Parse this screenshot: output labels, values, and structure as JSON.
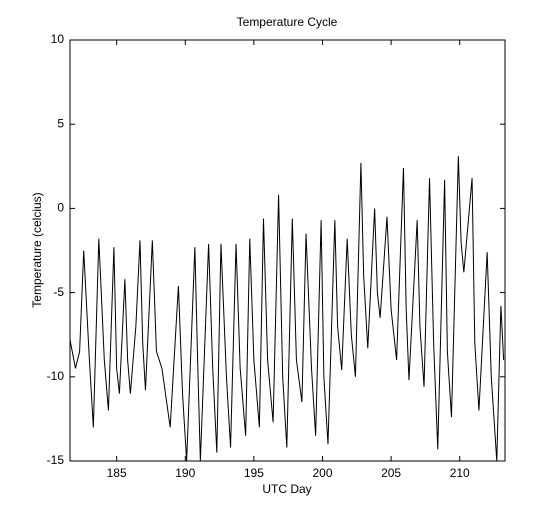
{
  "chart_data": {
    "type": "line",
    "title": "Temperature Cycle",
    "x_label": "UTC Day",
    "y_label": "Temperature (celcius)",
    "x": [
      181.6,
      182.0,
      182.3,
      182.6,
      183.0,
      183.3,
      183.7,
      184.1,
      184.4,
      184.8,
      185.0,
      185.2,
      185.6,
      185.8,
      186.0,
      186.4,
      186.7,
      186.9,
      187.1,
      187.6,
      187.9,
      188.3,
      188.9,
      189.5,
      189.8,
      190.1,
      190.7,
      190.9,
      191.1,
      191.7,
      192.0,
      192.3,
      192.6,
      193.0,
      193.3,
      193.7,
      194.0,
      194.4,
      194.7,
      195.0,
      195.4,
      195.7,
      196.0,
      196.4,
      196.8,
      197.1,
      197.4,
      197.8,
      198.1,
      198.5,
      198.8,
      199.2,
      199.5,
      199.9,
      200.1,
      200.4,
      200.9,
      201.1,
      201.4,
      201.8,
      202.1,
      202.4,
      202.8,
      203.0,
      203.3,
      203.8,
      204.0,
      204.2,
      204.7,
      205.0,
      205.4,
      205.9,
      206.1,
      206.3,
      206.9,
      207.1,
      207.4,
      207.8,
      208.1,
      208.4,
      208.9,
      209.1,
      209.4,
      209.9,
      210.1,
      210.3,
      210.9,
      211.1,
      211.4,
      212.0,
      212.3,
      212.7,
      213.0,
      213.2
    ],
    "series": [
      {
        "name": "Temperature",
        "color": "#000000",
        "values": [
          -7.8,
          -9.5,
          -8.5,
          -2.5,
          -8.8,
          -13.0,
          -1.8,
          -9.0,
          -12.0,
          -2.3,
          -9.5,
          -11.0,
          -4.2,
          -9.0,
          -11.0,
          -7.0,
          -1.9,
          -8.0,
          -10.8,
          -1.9,
          -8.5,
          -9.5,
          -13.0,
          -4.6,
          -11.0,
          -15.0,
          -2.3,
          -9.0,
          -15.0,
          -2.1,
          -9.5,
          -14.5,
          -2.1,
          -10.0,
          -14.2,
          -2.1,
          -9.5,
          -13.5,
          -1.8,
          -9.0,
          -13.0,
          -0.6,
          -9.0,
          -12.7,
          0.8,
          -10.0,
          -14.2,
          -0.6,
          -9.0,
          -11.5,
          -1.5,
          -9.5,
          -13.5,
          -0.7,
          -10.0,
          -14.0,
          -0.7,
          -7.0,
          -9.6,
          -1.8,
          -7.5,
          -10.0,
          2.7,
          -4.0,
          -8.3,
          0.0,
          -5.0,
          -6.5,
          -0.5,
          -6.0,
          -9.0,
          2.4,
          -6.0,
          -10.2,
          -0.7,
          -7.0,
          -10.6,
          1.8,
          -8.0,
          -14.3,
          1.7,
          -8.5,
          -12.4,
          3.1,
          -2.0,
          -3.8,
          1.8,
          -8.0,
          -12.0,
          -2.6,
          -10.0,
          -15.0,
          -5.8,
          -9.0
        ]
      }
    ],
    "xlim": [
      181.6,
      213.3
    ],
    "ylim": [
      -15,
      10
    ],
    "xticks": [
      185,
      190,
      195,
      200,
      205,
      210
    ],
    "yticks": [
      -15,
      -10,
      -5,
      0,
      5,
      10
    ]
  }
}
